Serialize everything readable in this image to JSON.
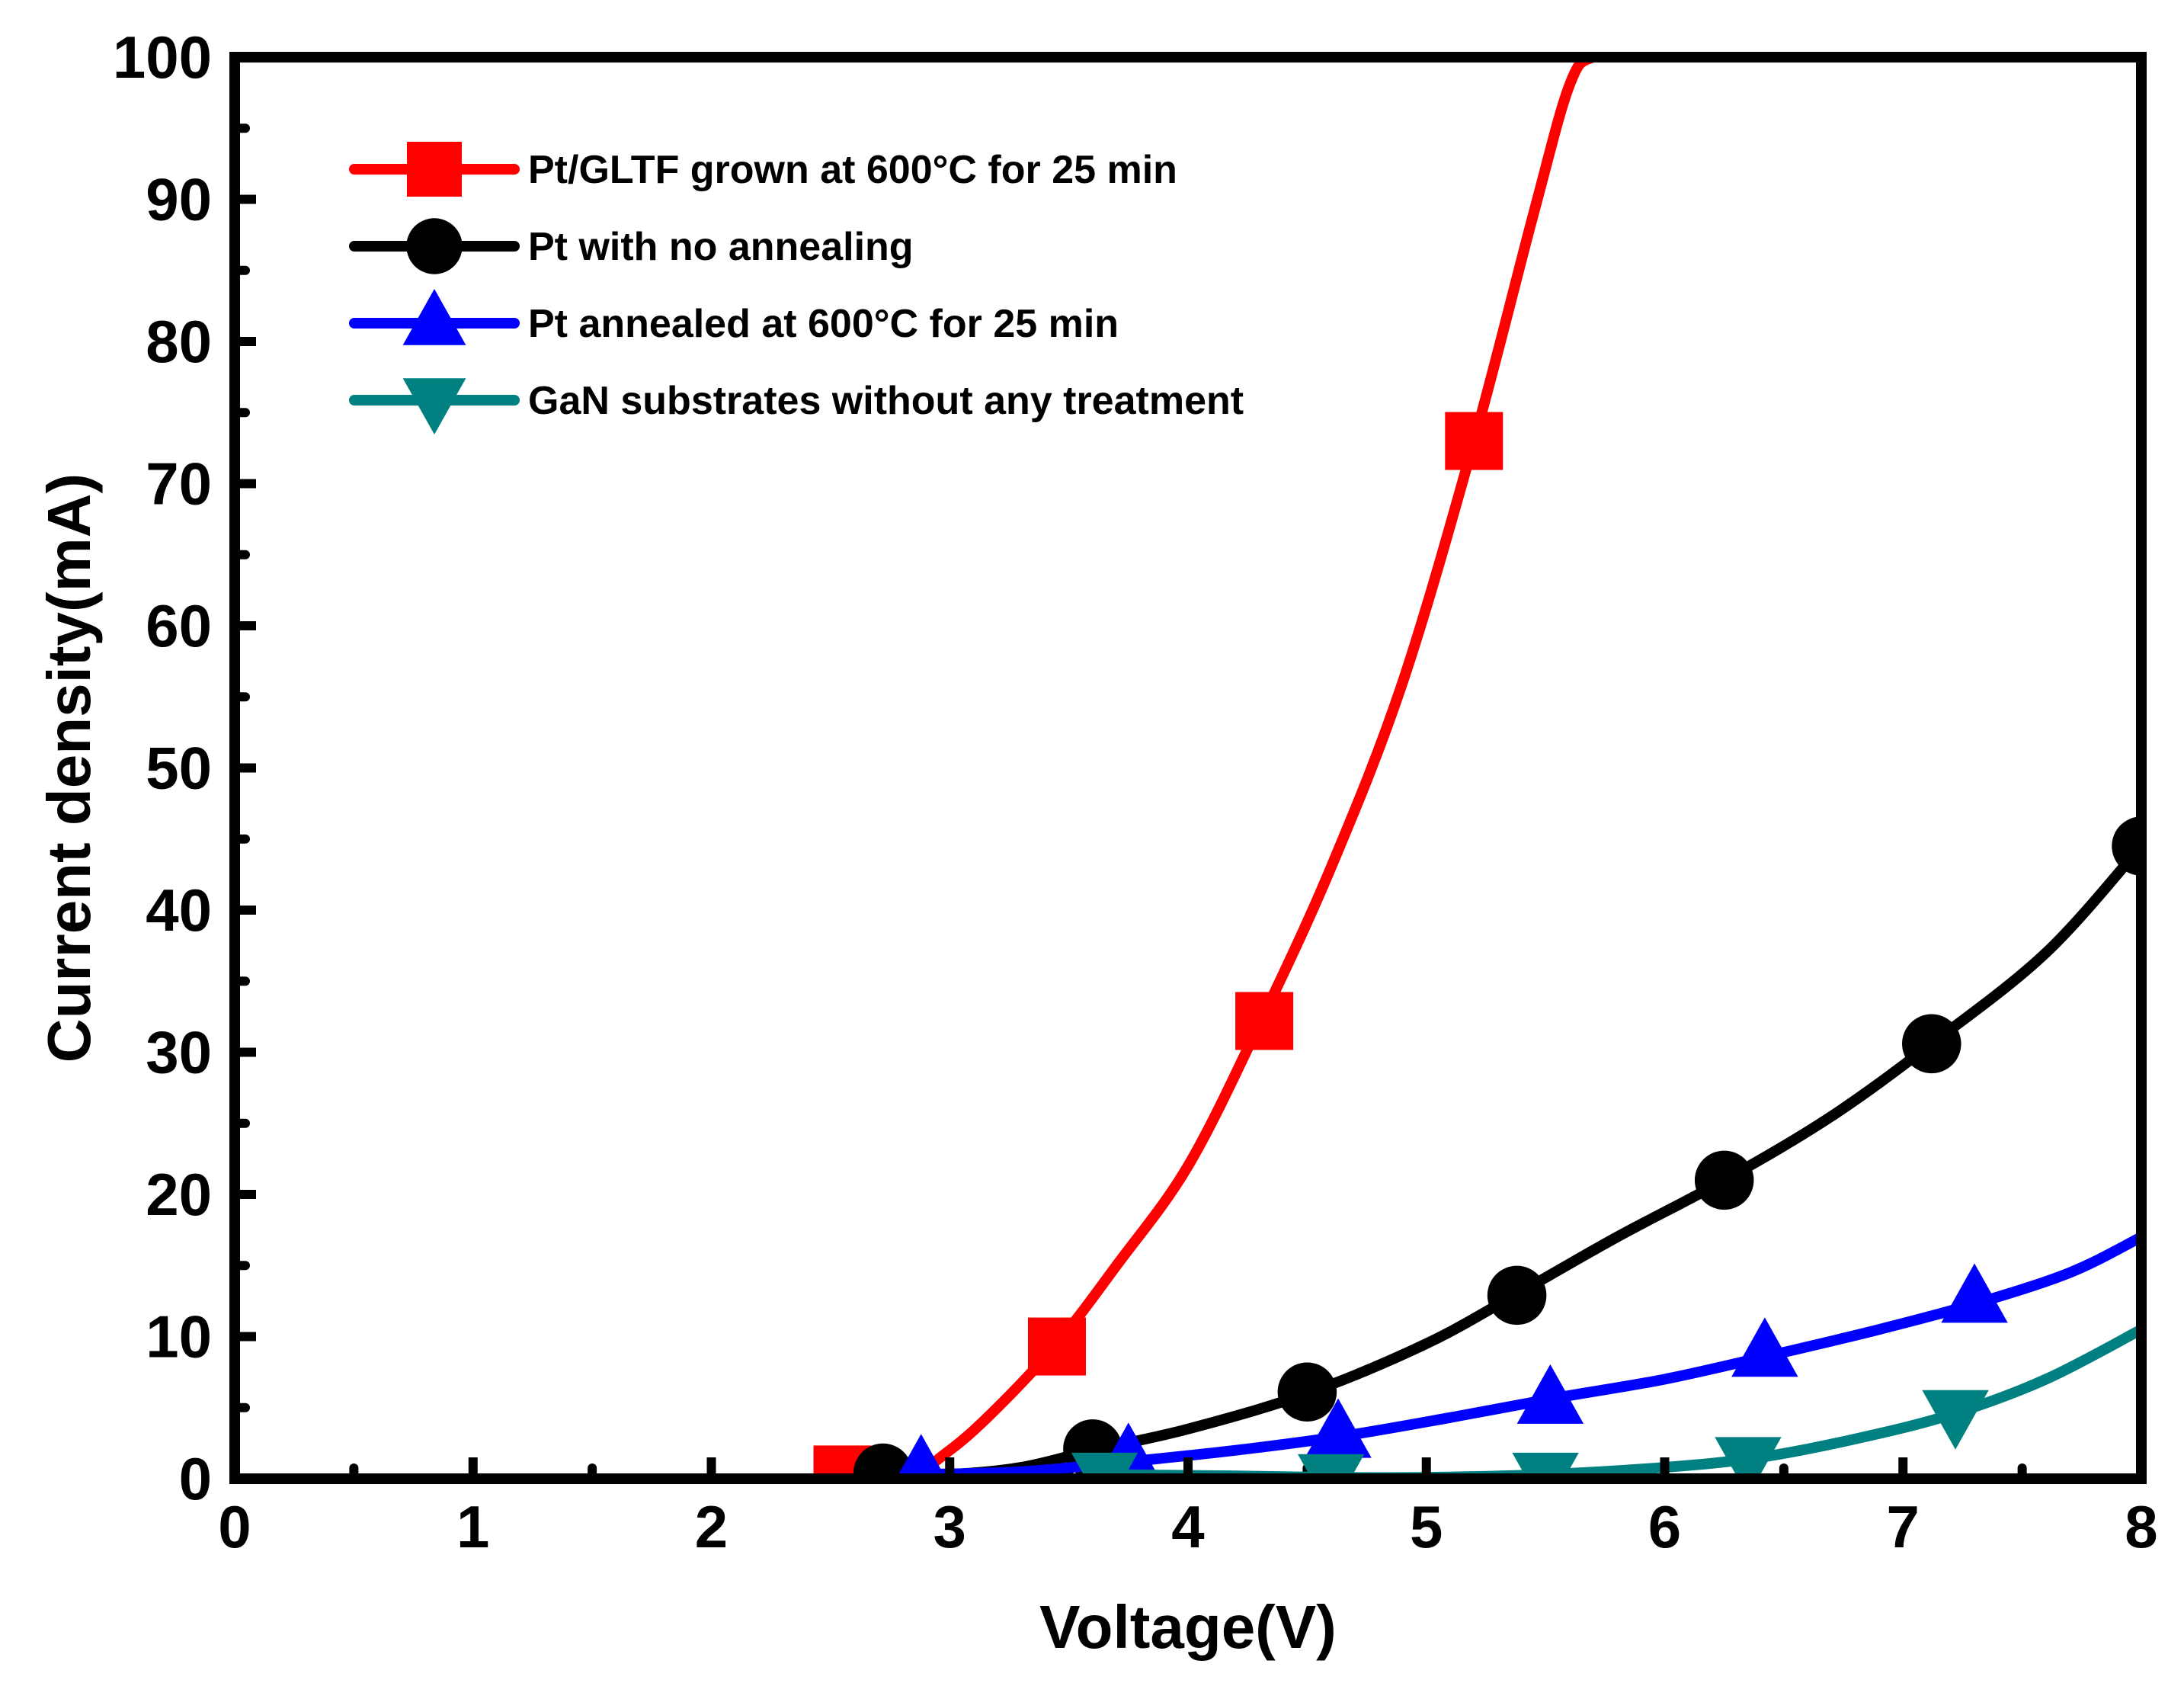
{
  "chart_data": {
    "type": "line",
    "title": "",
    "xlabel": "Voltage(V)",
    "ylabel": "Current density(mA)",
    "xlim": [
      0,
      8
    ],
    "ylim": [
      0,
      100
    ],
    "x_ticks": [
      "0",
      "1",
      "2",
      "3",
      "4",
      "5",
      "6",
      "7",
      "8"
    ],
    "y_ticks": [
      "0",
      "10",
      "20",
      "30",
      "40",
      "50",
      "60",
      "70",
      "80",
      "90",
      "100"
    ],
    "grid": false,
    "legend_position": "top-left",
    "series": [
      {
        "name": "Pt/GLTF grown at 600°C for 25 min",
        "color": "#ff0000",
        "marker": "square",
        "curve": [
          [
            2.5,
            0
          ],
          [
            2.8,
            0
          ],
          [
            3.0,
            2
          ],
          [
            3.2,
            5
          ],
          [
            3.45,
            9.5
          ],
          [
            3.7,
            15
          ],
          [
            4.0,
            22
          ],
          [
            4.3,
            32
          ],
          [
            4.6,
            43
          ],
          [
            4.9,
            56
          ],
          [
            5.2,
            73
          ],
          [
            5.45,
            89
          ],
          [
            5.6,
            98
          ],
          [
            5.7,
            100
          ],
          [
            5.9,
            100
          ]
        ],
        "markers": [
          [
            2.55,
            0.3
          ],
          [
            3.45,
            9.3
          ],
          [
            4.32,
            32.2
          ],
          [
            5.2,
            73
          ]
        ]
      },
      {
        "name": "Pt with no annealing",
        "color": "#000000",
        "marker": "circle",
        "curve": [
          [
            2.7,
            0.2
          ],
          [
            3.0,
            0.3
          ],
          [
            3.3,
            0.8
          ],
          [
            3.6,
            2
          ],
          [
            4.0,
            3.5
          ],
          [
            4.5,
            6
          ],
          [
            5.0,
            9.5
          ],
          [
            5.38,
            13
          ],
          [
            5.8,
            17
          ],
          [
            6.25,
            21
          ],
          [
            6.7,
            25.5
          ],
          [
            7.12,
            30.6
          ],
          [
            7.6,
            37
          ],
          [
            8.0,
            44.5
          ]
        ],
        "markers": [
          [
            2.72,
            0.4
          ],
          [
            3.6,
            2.1
          ],
          [
            4.5,
            6.1
          ],
          [
            5.38,
            12.9
          ],
          [
            6.25,
            21
          ],
          [
            7.12,
            30.6
          ],
          [
            8.0,
            44.5
          ]
        ]
      },
      {
        "name": "Pt annealed at 600°C for 25 min",
        "color": "#0000ff",
        "marker": "triangle-up",
        "curve": [
          [
            2.85,
            0.3
          ],
          [
            3.3,
            0.5
          ],
          [
            3.75,
            1.2
          ],
          [
            4.2,
            2
          ],
          [
            4.65,
            3
          ],
          [
            5.1,
            4.3
          ],
          [
            5.55,
            5.7
          ],
          [
            6.0,
            7
          ],
          [
            6.45,
            8.7
          ],
          [
            6.9,
            10.5
          ],
          [
            7.3,
            12.3
          ],
          [
            7.7,
            14.5
          ],
          [
            8.0,
            17
          ]
        ],
        "markers": [
          [
            2.88,
            0.6
          ],
          [
            3.75,
            1.4
          ],
          [
            4.63,
            3.1
          ],
          [
            5.52,
            5.5
          ],
          [
            6.42,
            8.8
          ],
          [
            7.3,
            12.6
          ]
        ]
      },
      {
        "name": "GaN substrates without any treatment",
        "color": "#008080",
        "marker": "triangle-down",
        "curve": [
          [
            3.6,
            0.3
          ],
          [
            4.2,
            0.2
          ],
          [
            4.6,
            0.1
          ],
          [
            5.0,
            0.1
          ],
          [
            5.5,
            0.3
          ],
          [
            6.0,
            0.8
          ],
          [
            6.4,
            1.5
          ],
          [
            6.8,
            2.8
          ],
          [
            7.2,
            4.5
          ],
          [
            7.6,
            7
          ],
          [
            8.0,
            10.5
          ]
        ],
        "markers": [
          [
            3.65,
            0.2
          ],
          [
            4.6,
            0.1
          ],
          [
            5.5,
            0.2
          ],
          [
            6.35,
            1.3
          ],
          [
            7.22,
            4.6
          ]
        ]
      }
    ]
  }
}
